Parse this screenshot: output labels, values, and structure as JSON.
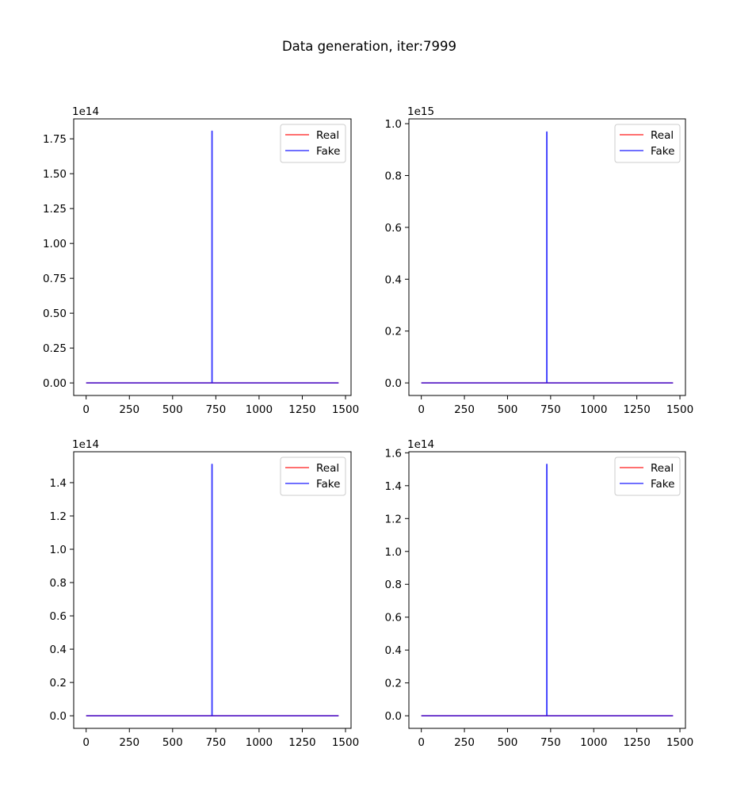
{
  "figure": {
    "suptitle": "Data generation, iter:7999"
  },
  "colors": {
    "real": "#ff0000",
    "fake": "#0000ff",
    "axes": "#000000",
    "legend_border": "#cccccc"
  },
  "chart_data": [
    {
      "type": "line",
      "title": "",
      "xlabel": "",
      "ylabel": "",
      "offset_text": "1e14",
      "xlim": [
        -72,
        1532
      ],
      "ylim": [
        -9000000000000.0,
        189300000000000.0
      ],
      "xticks": [
        0,
        250,
        500,
        750,
        1000,
        1250,
        1500
      ],
      "xtick_labels": [
        "0",
        "250",
        "500",
        "750",
        "1000",
        "1250",
        "1500"
      ],
      "yticks": [
        0,
        25000000000000.0,
        50000000000000.0,
        75000000000000.0,
        100000000000000.0,
        125000000000000.0,
        150000000000000.0,
        175000000000000.0
      ],
      "ytick_labels": [
        "0.00",
        "0.25",
        "0.50",
        "0.75",
        "1.00",
        "1.25",
        "1.50",
        "1.75"
      ],
      "legend": {
        "location": "upper right",
        "entries": [
          "Real",
          "Fake"
        ]
      },
      "grid": false,
      "series": [
        {
          "name": "Real",
          "color": "red",
          "x": [
            0,
            1460
          ],
          "y": [
            0,
            0
          ]
        },
        {
          "name": "Fake",
          "color": "blue",
          "x": [
            0,
            727,
            727,
            729,
            729,
            1460
          ],
          "y": [
            0,
            0,
            180500000000000.0,
            180500000000000.0,
            0,
            0
          ]
        }
      ]
    },
    {
      "type": "line",
      "title": "",
      "xlabel": "",
      "ylabel": "",
      "offset_text": "1e15",
      "xlim": [
        -72,
        1532
      ],
      "ylim": [
        -48500000000000.0,
        1018500000000000.0
      ],
      "xticks": [
        0,
        250,
        500,
        750,
        1000,
        1250,
        1500
      ],
      "xtick_labels": [
        "0",
        "250",
        "500",
        "750",
        "1000",
        "1250",
        "1500"
      ],
      "yticks": [
        0,
        200000000000000.0,
        400000000000000.0,
        600000000000000.0,
        800000000000000.0,
        1000000000000000.0
      ],
      "ytick_labels": [
        "0.0",
        "0.2",
        "0.4",
        "0.6",
        "0.8",
        "1.0"
      ],
      "legend": {
        "location": "upper right",
        "entries": [
          "Real",
          "Fake"
        ]
      },
      "grid": false,
      "series": [
        {
          "name": "Real",
          "color": "red",
          "x": [
            0,
            1460
          ],
          "y": [
            0,
            0
          ]
        },
        {
          "name": "Fake",
          "color": "blue",
          "x": [
            0,
            727,
            727,
            729,
            729,
            1460
          ],
          "y": [
            0,
            0,
            968000000000000.0,
            968000000000000.0,
            0,
            0
          ]
        }
      ]
    },
    {
      "type": "line",
      "title": "",
      "xlabel": "",
      "ylabel": "",
      "offset_text": "1e14",
      "xlim": [
        -72,
        1532
      ],
      "ylim": [
        -7550000000000.0,
        158550000000000.0
      ],
      "xticks": [
        0,
        250,
        500,
        750,
        1000,
        1250,
        1500
      ],
      "xtick_labels": [
        "0",
        "250",
        "500",
        "750",
        "1000",
        "1250",
        "1500"
      ],
      "yticks": [
        0,
        20000000000000.0,
        40000000000000.0,
        60000000000000.0,
        80000000000000.0,
        100000000000000.0,
        120000000000000.0,
        140000000000000.0
      ],
      "ytick_labels": [
        "0.0",
        "0.2",
        "0.4",
        "0.6",
        "0.8",
        "1.0",
        "1.2",
        "1.4"
      ],
      "legend": {
        "location": "upper right",
        "entries": [
          "Real",
          "Fake"
        ]
      },
      "grid": false,
      "series": [
        {
          "name": "Real",
          "color": "red",
          "x": [
            0,
            1460
          ],
          "y": [
            0,
            0
          ]
        },
        {
          "name": "Fake",
          "color": "blue",
          "x": [
            0,
            727,
            727,
            729,
            729,
            1460
          ],
          "y": [
            0,
            0,
            151000000000000.0,
            151000000000000.0,
            0,
            0
          ]
        }
      ]
    },
    {
      "type": "line",
      "title": "",
      "xlabel": "",
      "ylabel": "",
      "offset_text": "1e14",
      "xlim": [
        -72,
        1532
      ],
      "ylim": [
        -7650000000000.0,
        160650000000000.0
      ],
      "xticks": [
        0,
        250,
        500,
        750,
        1000,
        1250,
        1500
      ],
      "xtick_labels": [
        "0",
        "250",
        "500",
        "750",
        "1000",
        "1250",
        "1500"
      ],
      "yticks": [
        0,
        20000000000000.0,
        40000000000000.0,
        60000000000000.0,
        80000000000000.0,
        100000000000000.0,
        120000000000000.0,
        140000000000000.0,
        160000000000000.0
      ],
      "ytick_labels": [
        "0.0",
        "0.2",
        "0.4",
        "0.6",
        "0.8",
        "1.0",
        "1.2",
        "1.4",
        "1.6"
      ],
      "legend": {
        "location": "upper right",
        "entries": [
          "Real",
          "Fake"
        ]
      },
      "grid": false,
      "series": [
        {
          "name": "Real",
          "color": "red",
          "x": [
            0,
            1460
          ],
          "y": [
            0,
            0
          ]
        },
        {
          "name": "Fake",
          "color": "blue",
          "x": [
            0,
            727,
            727,
            729,
            729,
            1460
          ],
          "y": [
            0,
            0,
            153000000000000.0,
            153000000000000.0,
            0,
            0
          ]
        }
      ]
    }
  ]
}
